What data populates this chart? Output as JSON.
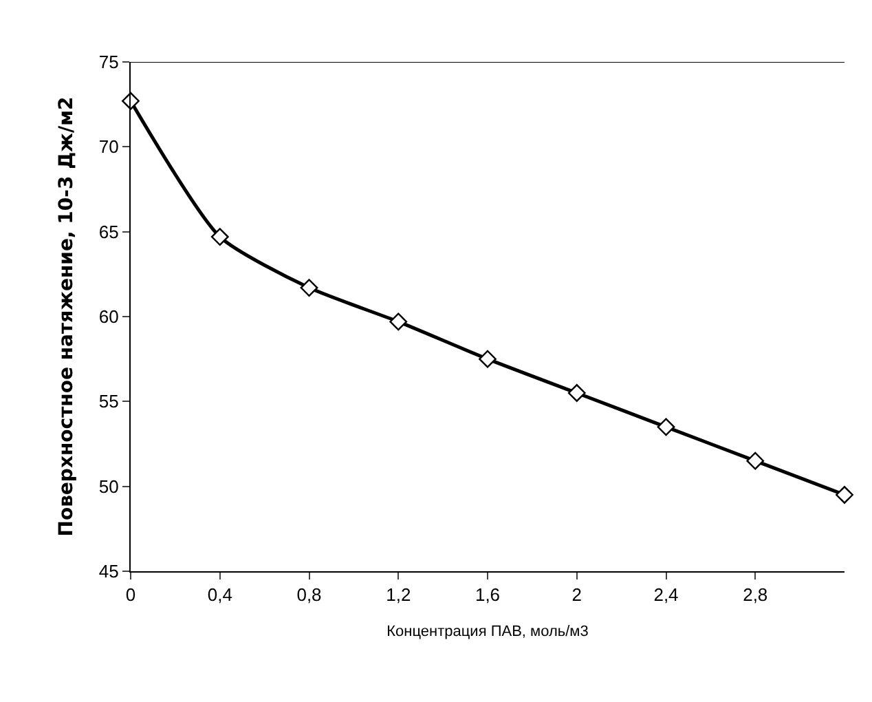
{
  "chart_data": {
    "type": "line",
    "xlabel": "Концентрация ПАВ, моль/м3",
    "ylabel": "Поверхностное натяжение, 10-3 Дж/м2",
    "x": [
      0,
      0.4,
      0.8,
      1.2,
      1.6,
      2.0,
      2.4,
      2.8,
      3.2
    ],
    "series": [
      {
        "color": "#000000",
        "values": [
          72.7,
          64.7,
          61.7,
          59.7,
          57.5,
          55.5,
          53.5,
          51.5,
          49.5
        ]
      }
    ],
    "xlim": [
      0,
      3.2
    ],
    "ylim": [
      45,
      75
    ],
    "xticks": [
      0,
      {
        "value": 0.4,
        "label": "0,4"
      },
      {
        "value": 0.8,
        "label": "0,8"
      },
      {
        "value": 1.2,
        "label": "1,2"
      },
      {
        "value": 1.6,
        "label": "1,6"
      },
      2,
      {
        "value": 2.4,
        "label": "2,4"
      },
      {
        "value": 2.8,
        "label": "2,8"
      }
    ],
    "yticks": [
      45,
      50,
      55,
      60,
      65,
      70,
      75
    ],
    "marker": "diamond",
    "line_style": "solid"
  }
}
